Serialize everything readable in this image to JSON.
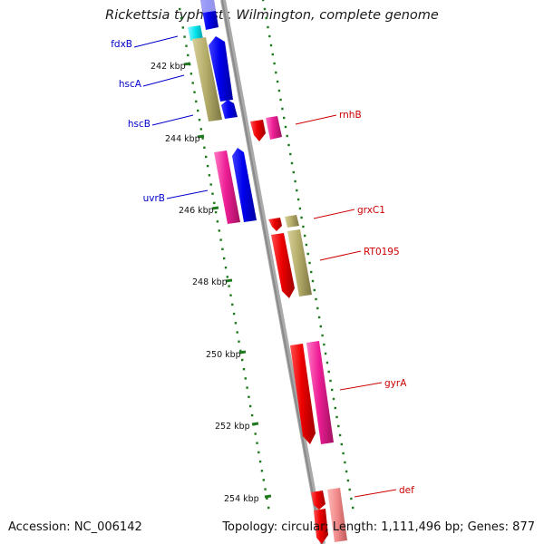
{
  "title": "Rickettsia typhi str. Wilmington, complete genome",
  "accession_text": "Accession: NC_006142",
  "summary_text": "Topology: circular; Length: 1,111,496 bp; Genes: 877",
  "colors": {
    "backbone": "#8a8a8a",
    "tick": "#1f7a1f",
    "blue": "#0000ee",
    "red": "#ee0000",
    "pink": "#ee1e96",
    "olive": "#b5ad6a",
    "cyan": "#00e5ee",
    "salmon": "#f08a8a"
  },
  "kbp_labels": [
    "242 kbp",
    "244 kbp",
    "246 kbp",
    "248 kbp",
    "250 kbp",
    "252 kbp",
    "254 kbp"
  ],
  "gene_labels": {
    "fdxB": "fdxB",
    "hscA": "hscA",
    "hscB": "hscB",
    "uvrB": "uvrB",
    "rnhB": "rnhB",
    "grxC1": "grxC1",
    "RT0195": "RT0195",
    "gyrA": "gyrA",
    "def": "def"
  }
}
